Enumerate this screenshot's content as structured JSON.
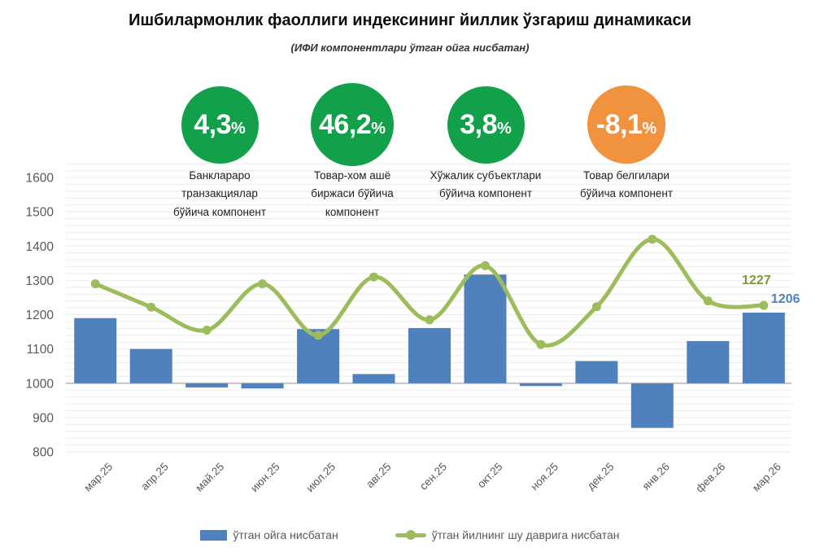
{
  "title": "Ишбилармонлик фаоллиги индексининг йиллик ўзгариш динамикаси",
  "subtitle": "(ИФИ компонентлари ўтган ойга нисбатан)",
  "badges": [
    {
      "value": "4,3",
      "unit": "%",
      "color": "#13a04a",
      "label_lines": [
        "Банклараро",
        "транзакциялар",
        "бўйича компонент"
      ]
    },
    {
      "value": "46,2",
      "unit": "%",
      "color": "#13a04a",
      "label_lines": [
        "Товар-хом ашё",
        "биржаси бўйича",
        "компонент"
      ]
    },
    {
      "value": "3,8",
      "unit": "%",
      "color": "#13a04a",
      "label_lines": [
        "Хўжалик субъектлари",
        "бўйича компонент"
      ]
    },
    {
      "value": "-8,1",
      "unit": "%",
      "color": "#f0923e",
      "label_lines": [
        "Товар белгилари",
        "бўйича компонент"
      ]
    }
  ],
  "chart_data": {
    "type": "combo-bar-line",
    "categories": [
      "мар.25",
      "апр.25",
      "май.25",
      "июн.25",
      "июл.25",
      "авг.25",
      "сен.25",
      "окт.25",
      "ноя.25",
      "дек.25",
      "янв.26",
      "фев.26",
      "мар.26"
    ],
    "series": [
      {
        "name": "ўтган ойга нисбатан",
        "type": "bar",
        "color": "#4f81bd",
        "baseline": 1000,
        "values": [
          1190,
          1100,
          988,
          985,
          1158,
          1027,
          1161,
          1317,
          992,
          1065,
          870,
          1123,
          1206
        ]
      },
      {
        "name": "ўтган йилнинг шу даврига нисбатан",
        "type": "line",
        "color": "#9dbd5c",
        "smooth": true,
        "values": [
          1290,
          1222,
          1155,
          1290,
          1140,
          1310,
          1185,
          1343,
          1113,
          1223,
          1420,
          1240,
          1227
        ]
      }
    ],
    "ylim": [
      800,
      1600
    ],
    "yticks": [
      1600,
      1500,
      1400,
      1300,
      1200,
      1100,
      1000,
      900,
      800
    ],
    "minor_grid_step": 20,
    "grid": true,
    "legend_position": "bottom",
    "end_labels": [
      {
        "text": "1227",
        "series": "line",
        "color": "#7b9a3f"
      },
      {
        "text": "1206",
        "series": "bar",
        "color": "#4f81bd"
      }
    ]
  }
}
